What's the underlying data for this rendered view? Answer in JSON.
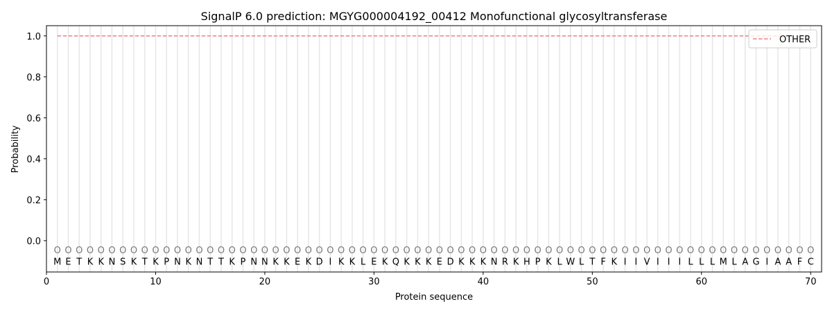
{
  "chart_data": {
    "type": "line",
    "title": "SignalP 6.0 prediction: MGYG000004192_00412 Monofunctional glycosyltransferase",
    "xlabel": "Protein sequence",
    "ylabel": "Probability",
    "xlim": [
      0,
      71
    ],
    "ylim": [
      -0.153,
      1.05
    ],
    "xticks": [
      0,
      10,
      20,
      30,
      40,
      50,
      60,
      70
    ],
    "yticks": [
      "0.0",
      "0.2",
      "0.4",
      "0.6",
      "0.8",
      "1.0"
    ],
    "grid": "vertical lines at each residue",
    "legend_position": "top-right",
    "sequence": [
      "M",
      "E",
      "T",
      "K",
      "K",
      "N",
      "S",
      "K",
      "T",
      "K",
      "P",
      "N",
      "K",
      "N",
      "T",
      "T",
      "K",
      "P",
      "N",
      "N",
      "K",
      "K",
      "E",
      "K",
      "D",
      "I",
      "K",
      "K",
      "L",
      "E",
      "K",
      "Q",
      "K",
      "K",
      "K",
      "E",
      "D",
      "K",
      "K",
      "K",
      "N",
      "R",
      "K",
      "H",
      "P",
      "K",
      "L",
      "W",
      "L",
      "T",
      "F",
      "K",
      "I",
      "I",
      "V",
      "I",
      "I",
      "I",
      "L",
      "L",
      "L",
      "M",
      "L",
      "A",
      "G",
      "I",
      "A",
      "A",
      "F",
      "C"
    ],
    "labels_marker": "O",
    "series": [
      {
        "name": "OTHER",
        "color": "#f08080",
        "style": "dashed",
        "x_range": [
          1,
          70
        ],
        "value": 1.0
      }
    ]
  }
}
